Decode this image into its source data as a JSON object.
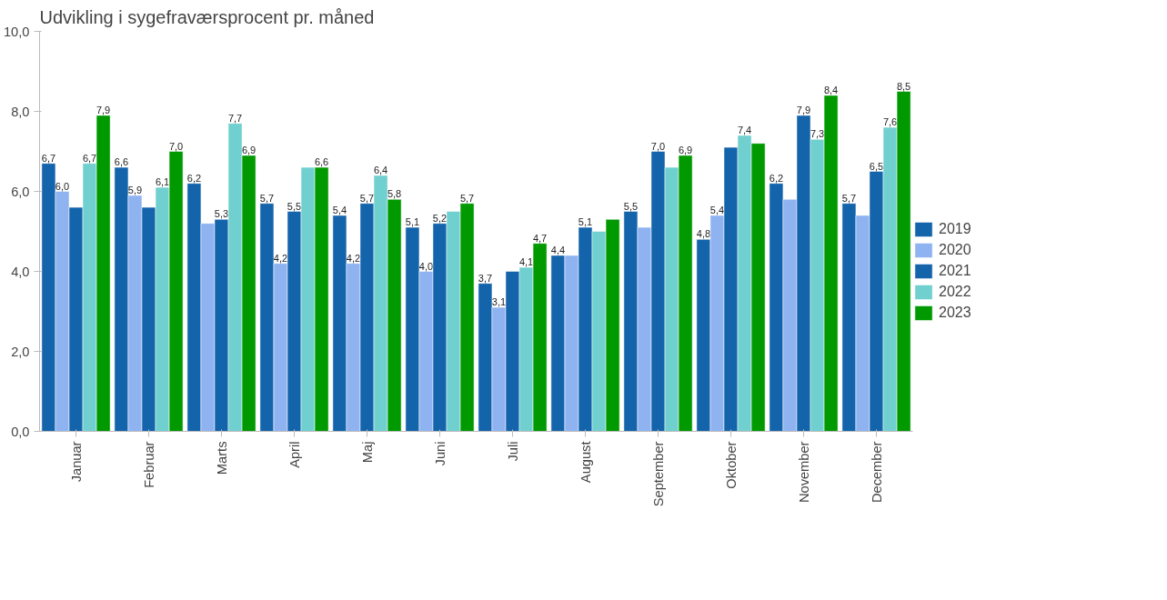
{
  "chart_data": {
    "type": "bar",
    "title": "Udvikling i sygefraværsprocent pr. måned",
    "categories": [
      "Januar",
      "Februar",
      "Marts",
      "April",
      "Maj",
      "Juni",
      "Juli",
      "August",
      "September",
      "Oktober",
      "November",
      "December"
    ],
    "series": [
      {
        "name": "2019",
        "color": "#1464ac",
        "values": [
          6.7,
          6.6,
          6.2,
          5.7,
          5.4,
          5.1,
          3.7,
          4.4,
          5.5,
          4.8,
          6.2,
          5.7
        ],
        "value_labels": [
          "6,7",
          "6,6",
          "6,2",
          "5,7",
          "5,4",
          "5,1",
          "3,7",
          "4,4",
          "5,5",
          "4,8",
          "6,2",
          "5,7"
        ]
      },
      {
        "name": "2020",
        "color": "#8fb3f0",
        "values": [
          6.0,
          5.9,
          5.2,
          4.2,
          4.2,
          4.0,
          3.1,
          4.4,
          5.1,
          5.4,
          5.8,
          5.4
        ],
        "value_labels": [
          "6,0",
          "5,9",
          null,
          "4,2",
          "4,2",
          "4,0",
          "3,1",
          null,
          null,
          "5,4",
          null,
          null
        ]
      },
      {
        "name": "2021",
        "color": "#1464ac",
        "values": [
          5.6,
          5.6,
          5.3,
          5.5,
          5.7,
          5.2,
          4.0,
          5.1,
          7.0,
          7.1,
          7.9,
          6.5
        ],
        "value_labels": [
          null,
          null,
          "5,3",
          "5,5",
          "5,7",
          "5,2",
          null,
          "5,1",
          "7,0",
          null,
          "7,9",
          "6,5"
        ]
      },
      {
        "name": "2022",
        "color": "#70d0cf",
        "values": [
          6.7,
          6.1,
          7.7,
          6.6,
          6.4,
          5.5,
          4.1,
          5.0,
          6.6,
          7.4,
          7.3,
          7.6
        ],
        "value_labels": [
          "6,7",
          "6,1",
          "7,7",
          null,
          "6,4",
          null,
          "4,1",
          null,
          null,
          "7,4",
          "7,3",
          "7,6"
        ]
      },
      {
        "name": "2023",
        "color": "#009900",
        "values": [
          7.9,
          7.0,
          6.9,
          6.6,
          5.8,
          5.7,
          4.7,
          5.3,
          6.9,
          7.2,
          8.4,
          8.5
        ],
        "value_labels": [
          "7,9",
          "7,0",
          "6,9",
          "6,6",
          "5,8",
          "5,7",
          "4,7",
          null,
          "6,9",
          null,
          "8,4",
          "8,5"
        ]
      }
    ],
    "ylim": [
      0,
      10
    ],
    "yticks": [
      {
        "value": 0,
        "label": "0,0"
      },
      {
        "value": 2,
        "label": "2,0"
      },
      {
        "value": 4,
        "label": "4,0"
      },
      {
        "value": 6,
        "label": "6,0"
      },
      {
        "value": 8,
        "label": "8,0"
      },
      {
        "value": 10,
        "label": "10,0"
      }
    ],
    "grid": false,
    "legend": "right"
  }
}
